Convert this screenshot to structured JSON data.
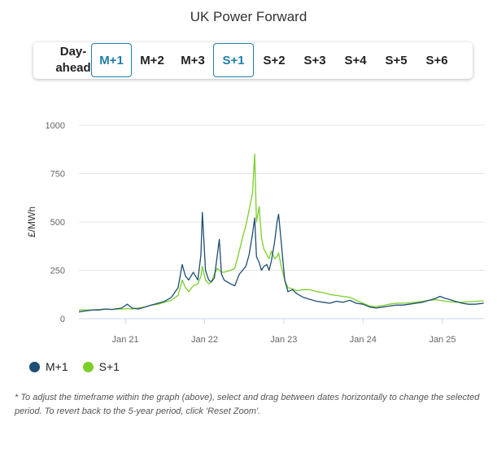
{
  "title": "UK Power Forward",
  "tabs": [
    {
      "label": "Day-\nahead",
      "active": false
    },
    {
      "label": "M+1",
      "active": true
    },
    {
      "label": "M+2",
      "active": false
    },
    {
      "label": "M+3",
      "active": false
    },
    {
      "label": "S+1",
      "active": true
    },
    {
      "label": "S+2",
      "active": false
    },
    {
      "label": "S+3",
      "active": false
    },
    {
      "label": "S+4",
      "active": false
    },
    {
      "label": "S+5",
      "active": false
    },
    {
      "label": "S+6",
      "active": false
    }
  ],
  "note": "* To adjust the timeframe within the graph (above), select and drag between dates horizontally to change the selected period. To revert back to the 5-year period, click 'Reset Zoom'.",
  "colors": {
    "m1": "#1d4e74",
    "s1": "#7ccf2a",
    "accent": "#1f7ea8"
  },
  "chart_data": {
    "type": "line",
    "ylabel": "£/MWh",
    "ylim": [
      0,
      1000
    ],
    "yticks": [
      0,
      250,
      500,
      750,
      1000
    ],
    "xlim": [
      "2020-06-01",
      "2025-07-15"
    ],
    "xticks": [
      {
        "label": "Jan 21",
        "date": "2021-01-01"
      },
      {
        "label": "Jan 22",
        "date": "2022-01-01"
      },
      {
        "label": "Jan 23",
        "date": "2023-01-01"
      },
      {
        "label": "Jan 24",
        "date": "2024-01-01"
      },
      {
        "label": "Jan 25",
        "date": "2025-01-01"
      }
    ],
    "grid": true,
    "legend_position": "bottom-left",
    "series": [
      {
        "name": "M+1",
        "color": "#1d4e74",
        "points": [
          [
            "2020-06-01",
            35
          ],
          [
            "2020-07-01",
            40
          ],
          [
            "2020-08-01",
            45
          ],
          [
            "2020-09-01",
            45
          ],
          [
            "2020-10-01",
            50
          ],
          [
            "2020-11-01",
            48
          ],
          [
            "2020-12-15",
            55
          ],
          [
            "2021-01-10",
            75
          ],
          [
            "2021-02-01",
            55
          ],
          [
            "2021-03-01",
            50
          ],
          [
            "2021-04-01",
            60
          ],
          [
            "2021-05-01",
            70
          ],
          [
            "2021-06-01",
            80
          ],
          [
            "2021-07-01",
            90
          ],
          [
            "2021-08-01",
            110
          ],
          [
            "2021-09-01",
            160
          ],
          [
            "2021-09-20",
            280
          ],
          [
            "2021-10-05",
            220
          ],
          [
            "2021-10-20",
            200
          ],
          [
            "2021-11-10",
            240
          ],
          [
            "2021-12-01",
            200
          ],
          [
            "2021-12-15",
            330
          ],
          [
            "2021-12-22",
            550
          ],
          [
            "2022-01-05",
            250
          ],
          [
            "2022-01-20",
            200
          ],
          [
            "2022-02-01",
            190
          ],
          [
            "2022-02-15",
            210
          ],
          [
            "2022-03-01",
            330
          ],
          [
            "2022-03-10",
            410
          ],
          [
            "2022-03-20",
            230
          ],
          [
            "2022-04-01",
            200
          ],
          [
            "2022-05-01",
            180
          ],
          [
            "2022-05-20",
            170
          ],
          [
            "2022-06-10",
            230
          ],
          [
            "2022-06-25",
            250
          ],
          [
            "2022-07-10",
            270
          ],
          [
            "2022-07-25",
            330
          ],
          [
            "2022-08-10",
            440
          ],
          [
            "2022-08-20",
            520
          ],
          [
            "2022-08-28",
            320
          ],
          [
            "2022-09-10",
            290
          ],
          [
            "2022-09-20",
            250
          ],
          [
            "2022-10-01",
            270
          ],
          [
            "2022-10-15",
            280
          ],
          [
            "2022-10-25",
            250
          ],
          [
            "2022-11-05",
            300
          ],
          [
            "2022-11-20",
            400
          ],
          [
            "2022-12-01",
            500
          ],
          [
            "2022-12-08",
            540
          ],
          [
            "2022-12-18",
            420
          ],
          [
            "2023-01-05",
            200
          ],
          [
            "2023-01-20",
            140
          ],
          [
            "2023-02-10",
            150
          ],
          [
            "2023-03-01",
            130
          ],
          [
            "2023-04-01",
            110
          ],
          [
            "2023-05-01",
            100
          ],
          [
            "2023-06-01",
            90
          ],
          [
            "2023-07-01",
            85
          ],
          [
            "2023-08-01",
            80
          ],
          [
            "2023-09-01",
            90
          ],
          [
            "2023-10-01",
            85
          ],
          [
            "2023-11-01",
            95
          ],
          [
            "2023-12-01",
            80
          ],
          [
            "2024-01-01",
            75
          ],
          [
            "2024-02-01",
            60
          ],
          [
            "2024-03-01",
            55
          ],
          [
            "2024-04-01",
            60
          ],
          [
            "2024-05-01",
            65
          ],
          [
            "2024-06-01",
            70
          ],
          [
            "2024-07-01",
            70
          ],
          [
            "2024-08-01",
            75
          ],
          [
            "2024-09-01",
            80
          ],
          [
            "2024-10-01",
            85
          ],
          [
            "2024-11-01",
            95
          ],
          [
            "2024-12-01",
            105
          ],
          [
            "2024-12-20",
            115
          ],
          [
            "2025-01-15",
            105
          ],
          [
            "2025-02-01",
            100
          ],
          [
            "2025-03-01",
            90
          ],
          [
            "2025-04-01",
            80
          ],
          [
            "2025-05-01",
            75
          ],
          [
            "2025-06-01",
            75
          ],
          [
            "2025-07-10",
            80
          ]
        ]
      },
      {
        "name": "S+1",
        "color": "#7ccf2a",
        "points": [
          [
            "2020-06-01",
            45
          ],
          [
            "2020-07-01",
            45
          ],
          [
            "2020-08-01",
            45
          ],
          [
            "2020-09-01",
            47
          ],
          [
            "2020-10-01",
            50
          ],
          [
            "2020-11-01",
            48
          ],
          [
            "2020-12-15",
            50
          ],
          [
            "2021-01-10",
            52
          ],
          [
            "2021-02-01",
            50
          ],
          [
            "2021-03-01",
            55
          ],
          [
            "2021-04-01",
            60
          ],
          [
            "2021-05-01",
            70
          ],
          [
            "2021-06-01",
            75
          ],
          [
            "2021-07-01",
            85
          ],
          [
            "2021-08-01",
            95
          ],
          [
            "2021-09-01",
            120
          ],
          [
            "2021-09-20",
            200
          ],
          [
            "2021-10-05",
            160
          ],
          [
            "2021-10-20",
            140
          ],
          [
            "2021-11-10",
            170
          ],
          [
            "2021-12-01",
            180
          ],
          [
            "2021-12-15",
            220
          ],
          [
            "2021-12-22",
            270
          ],
          [
            "2022-01-05",
            200
          ],
          [
            "2022-01-20",
            180
          ],
          [
            "2022-02-01",
            190
          ],
          [
            "2022-02-15",
            230
          ],
          [
            "2022-03-01",
            260
          ],
          [
            "2022-03-10",
            250
          ],
          [
            "2022-03-20",
            240
          ],
          [
            "2022-04-01",
            240
          ],
          [
            "2022-05-01",
            250
          ],
          [
            "2022-05-20",
            260
          ],
          [
            "2022-06-10",
            350
          ],
          [
            "2022-06-25",
            420
          ],
          [
            "2022-07-10",
            480
          ],
          [
            "2022-07-25",
            560
          ],
          [
            "2022-08-10",
            650
          ],
          [
            "2022-08-20",
            850
          ],
          [
            "2022-08-28",
            500
          ],
          [
            "2022-09-10",
            580
          ],
          [
            "2022-09-20",
            420
          ],
          [
            "2022-10-01",
            360
          ],
          [
            "2022-10-15",
            330
          ],
          [
            "2022-10-25",
            310
          ],
          [
            "2022-11-05",
            350
          ],
          [
            "2022-11-20",
            310
          ],
          [
            "2022-12-01",
            320
          ],
          [
            "2022-12-08",
            340
          ],
          [
            "2022-12-18",
            280
          ],
          [
            "2023-01-05",
            200
          ],
          [
            "2023-01-20",
            160
          ],
          [
            "2023-02-10",
            155
          ],
          [
            "2023-03-01",
            145
          ],
          [
            "2023-04-01",
            150
          ],
          [
            "2023-05-01",
            150
          ],
          [
            "2023-06-01",
            140
          ],
          [
            "2023-07-01",
            135
          ],
          [
            "2023-08-01",
            125
          ],
          [
            "2023-09-01",
            120
          ],
          [
            "2023-10-01",
            115
          ],
          [
            "2023-11-01",
            110
          ],
          [
            "2023-12-01",
            95
          ],
          [
            "2024-01-01",
            80
          ],
          [
            "2024-02-01",
            65
          ],
          [
            "2024-03-01",
            62
          ],
          [
            "2024-04-01",
            68
          ],
          [
            "2024-05-01",
            75
          ],
          [
            "2024-06-01",
            80
          ],
          [
            "2024-07-01",
            80
          ],
          [
            "2024-08-01",
            82
          ],
          [
            "2024-09-01",
            85
          ],
          [
            "2024-10-01",
            90
          ],
          [
            "2024-11-01",
            95
          ],
          [
            "2024-12-01",
            98
          ],
          [
            "2024-12-20",
            95
          ],
          [
            "2025-01-15",
            90
          ],
          [
            "2025-02-01",
            88
          ],
          [
            "2025-03-01",
            85
          ],
          [
            "2025-04-01",
            85
          ],
          [
            "2025-05-01",
            88
          ],
          [
            "2025-06-01",
            90
          ],
          [
            "2025-07-10",
            92
          ]
        ]
      }
    ]
  }
}
